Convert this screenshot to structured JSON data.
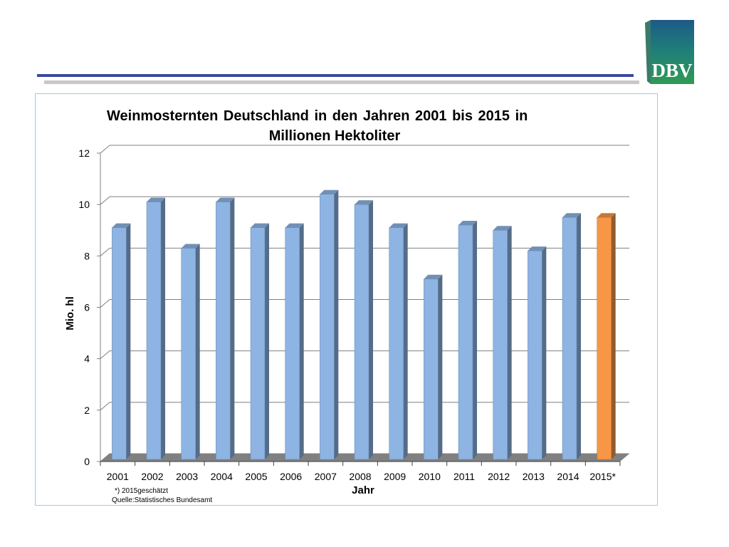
{
  "chart_data": {
    "type": "bar",
    "title_line1": "Weinmosternten Deutschland in den Jahren 2001 bis 2015 in",
    "title_line2": "Millionen Hektoliter",
    "xlabel": "Jahr",
    "ylabel": "Mio. hl",
    "ylim": [
      0,
      12
    ],
    "yticks": [
      0,
      2,
      4,
      6,
      8,
      10,
      12
    ],
    "grid": true,
    "categories": [
      "2001",
      "2002",
      "2003",
      "2004",
      "2005",
      "2006",
      "2007",
      "2008",
      "2009",
      "2010",
      "2011",
      "2012",
      "2013",
      "2014",
      "2015*"
    ],
    "values": [
      9.1,
      10.1,
      8.3,
      10.1,
      9.1,
      9.1,
      10.4,
      10.0,
      9.1,
      7.1,
      9.2,
      9.0,
      8.2,
      9.5,
      9.5
    ],
    "colors": [
      "#8db4e2",
      "#8db4e2",
      "#8db4e2",
      "#8db4e2",
      "#8db4e2",
      "#8db4e2",
      "#8db4e2",
      "#8db4e2",
      "#8db4e2",
      "#8db4e2",
      "#8db4e2",
      "#8db4e2",
      "#8db4e2",
      "#8db4e2",
      "#f79646"
    ],
    "footnote": "*) 2015geschätzt",
    "source": "Quelle:Statistisches  Bundesamt"
  },
  "logo": {
    "text": "DBV",
    "color_top": "#1f5c8a",
    "color_bottom": "#2e8b57"
  }
}
